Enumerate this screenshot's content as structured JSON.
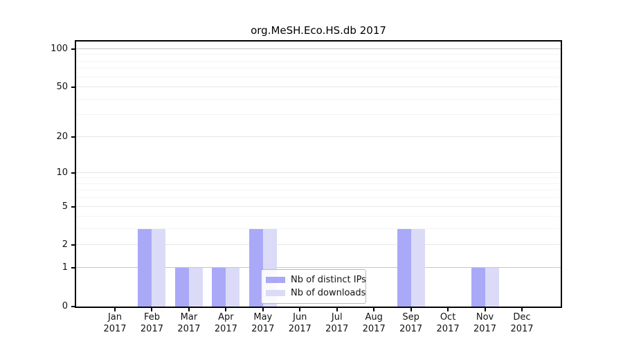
{
  "chart_data": {
    "type": "bar",
    "title": "org.MeSH.Eco.HS.db 2017",
    "categories": [
      {
        "month": "Jan",
        "year": "2017"
      },
      {
        "month": "Feb",
        "year": "2017"
      },
      {
        "month": "Mar",
        "year": "2017"
      },
      {
        "month": "Apr",
        "year": "2017"
      },
      {
        "month": "May",
        "year": "2017"
      },
      {
        "month": "Jun",
        "year": "2017"
      },
      {
        "month": "Jul",
        "year": "2017"
      },
      {
        "month": "Aug",
        "year": "2017"
      },
      {
        "month": "Sep",
        "year": "2017"
      },
      {
        "month": "Oct",
        "year": "2017"
      },
      {
        "month": "Nov",
        "year": "2017"
      },
      {
        "month": "Dec",
        "year": "2017"
      }
    ],
    "series": [
      {
        "name": "Nb of distinct IPs",
        "color": "#a9a9f8",
        "values": [
          0,
          3,
          1,
          1,
          3,
          0,
          0,
          0,
          3,
          0,
          1,
          0
        ]
      },
      {
        "name": "Nb of downloads",
        "color": "#dbdbf8",
        "values": [
          0,
          3,
          1,
          1,
          3,
          0,
          0,
          0,
          3,
          0,
          1,
          0
        ]
      }
    ],
    "y_axis": {
      "scale": "log1p",
      "ticks": [
        0,
        1,
        2,
        5,
        10,
        20,
        50,
        100
      ],
      "emphasized_gridlines": [
        1,
        100
      ],
      "minor_gridlines": [
        3,
        4,
        6,
        7,
        8,
        9,
        30,
        40,
        60,
        70,
        80,
        90
      ],
      "ylim": [
        0,
        115
      ]
    },
    "x_axis": {
      "label": "",
      "tick_year": "2017"
    },
    "legend": {
      "position": "lower-center",
      "entries": [
        "Nb of distinct IPs",
        "Nb of downloads"
      ]
    },
    "grid": true,
    "colors": {
      "bar_distinct_ips": "#a9a9f8",
      "bar_downloads": "#dbdbf8",
      "grid_major": "#e7e7e7",
      "grid_minor": "#f4f4f4",
      "grid_emphasized": "#c6c6c6",
      "axis": "#000000",
      "background": "#ffffff"
    }
  }
}
